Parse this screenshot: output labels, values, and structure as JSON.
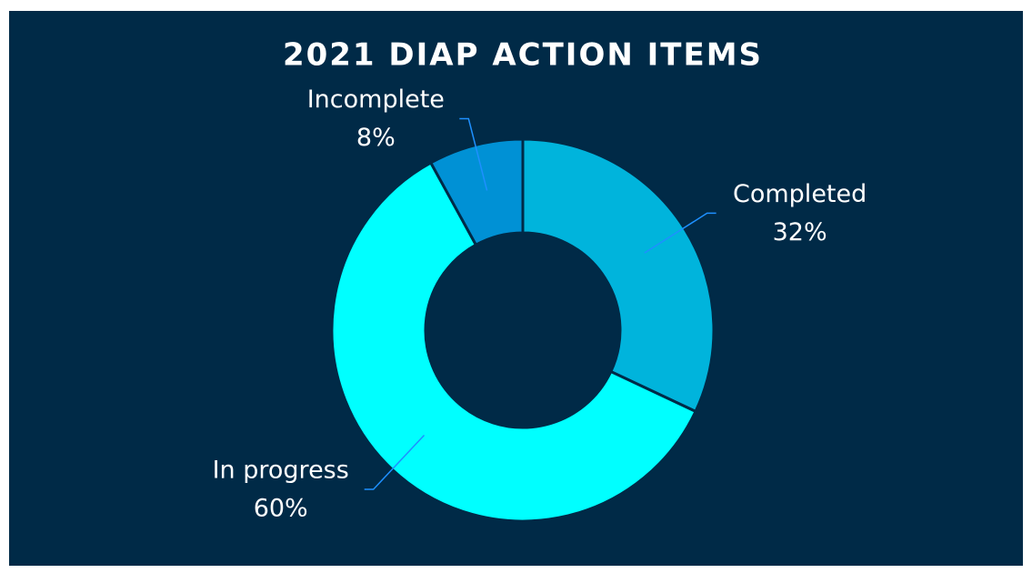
{
  "chart_data": {
    "type": "donut",
    "title": "2021 DIAP ACTION ITEMS",
    "categories": [
      "Completed",
      "In progress",
      "Incomplete"
    ],
    "values": [
      32,
      60,
      8
    ],
    "value_labels": [
      "32%",
      "60%",
      "8%"
    ],
    "colors": [
      "#00b4dc",
      "#00ffff",
      "#0091d5"
    ]
  }
}
